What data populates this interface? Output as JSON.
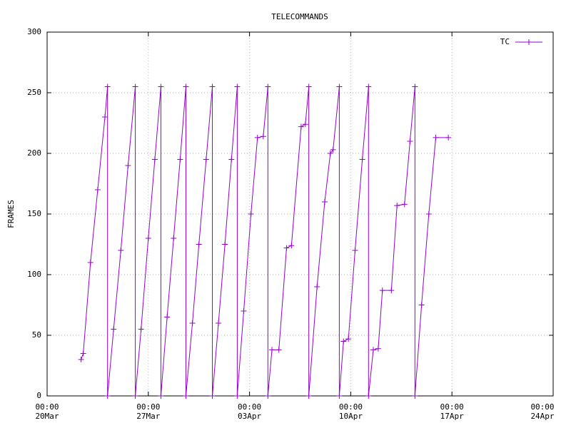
{
  "chart_data": {
    "type": "line",
    "title": "TELECOMMANDS",
    "y_label": "FRAMES",
    "x": [
      2.35,
      2.5,
      3.0,
      3.5,
      4.0,
      4.18,
      4.18,
      4.6,
      5.1,
      5.6,
      6.1,
      6.1,
      6.5,
      7.0,
      7.45,
      7.87,
      7.87,
      8.3,
      8.75,
      9.2,
      9.6,
      9.6,
      10.05,
      10.5,
      11.0,
      11.43,
      11.43,
      11.85,
      12.3,
      12.75,
      13.15,
      13.15,
      13.6,
      14.1,
      14.55,
      14.95,
      15.27,
      15.27,
      15.55,
      16.03,
      16.56,
      16.9,
      17.57,
      17.86,
      18.1,
      18.1,
      18.67,
      19.2,
      19.59,
      19.78,
      20.21,
      20.21,
      20.5,
      20.84,
      21.3,
      21.8,
      22.23,
      22.23,
      22.56,
      22.9,
      23.19,
      23.81,
      24.2,
      24.72,
      25.1,
      25.44,
      25.44,
      25.9,
      26.4,
      26.88,
      27.75
    ],
    "series": [
      {
        "name": "TC",
        "color": "#9400d3",
        "values": [
          30,
          35,
          110,
          170,
          230,
          255,
          0,
          55,
          120,
          190,
          255,
          0,
          55,
          130,
          195,
          255,
          0,
          65,
          130,
          195,
          255,
          0,
          60,
          125,
          195,
          255,
          0,
          60,
          125,
          195,
          255,
          0,
          70,
          150,
          213,
          214,
          255,
          0,
          38,
          38,
          122,
          124,
          222,
          224,
          255,
          0,
          90,
          160,
          200,
          203,
          255,
          0,
          45,
          47,
          120,
          195,
          255,
          0,
          38,
          39,
          87,
          87,
          157,
          158,
          210,
          255,
          0,
          75,
          150,
          213,
          213
        ]
      }
    ],
    "xlim": [
      0,
      35
    ],
    "xticks": [
      {
        "value": 0,
        "label": "00:00\n20Mar"
      },
      {
        "value": 7,
        "label": "00:00\n27Mar"
      },
      {
        "value": 14,
        "label": "00:00\n03Apr"
      },
      {
        "value": 21,
        "label": "00:00\n10Apr"
      },
      {
        "value": 28,
        "label": "00:00\n17Apr"
      },
      {
        "value": 35,
        "label": "00:00\n24Apr"
      }
    ],
    "ylim": [
      0,
      300
    ],
    "yticks": [
      0,
      50,
      100,
      150,
      200,
      250,
      300
    ],
    "grid": true,
    "legend": "top-right"
  }
}
